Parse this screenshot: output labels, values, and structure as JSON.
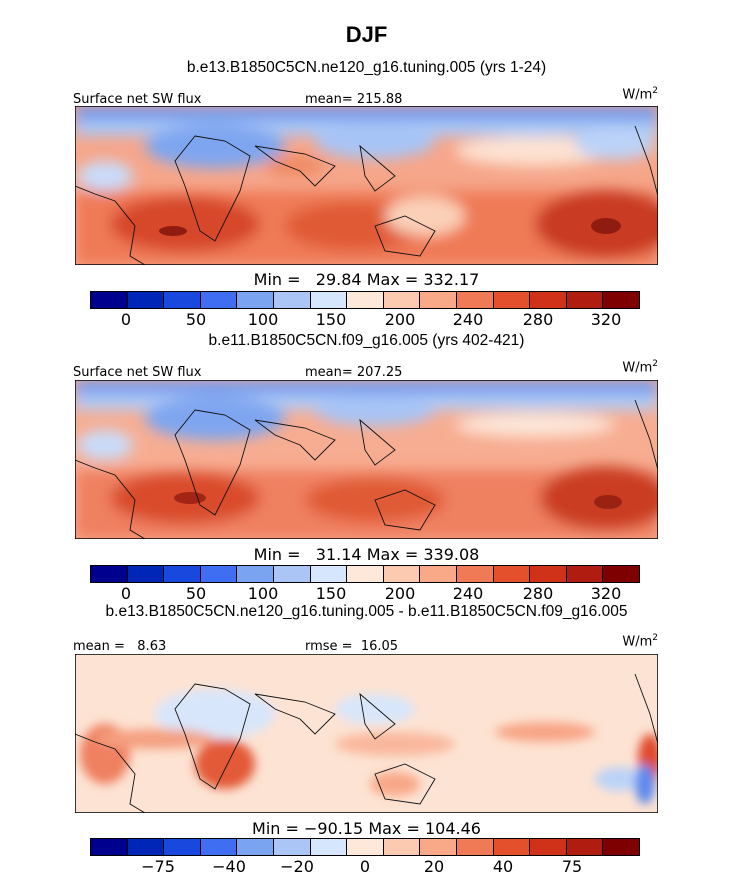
{
  "figure": {
    "title": "DJF",
    "colors": {
      "deep_red": "#8b0000",
      "red": "#e04a2a",
      "orange": "#f07050",
      "light_orange": "#fbb69a",
      "cream": "#fde4d4",
      "pale_blue": "#d0e4fb",
      "mid_blue": "#7aa4f0",
      "blue": "#2a5ae8",
      "dark_blue": "#00008f"
    }
  },
  "panels": [
    {
      "run_label": "b.e13.B1850C5CN.ne120_g16.tuning.005 (yrs 1-24)",
      "left_label": "Surface net SW flux",
      "center_label": "mean= 215.88",
      "units_base": "W/m",
      "units_exp": "2",
      "min_label": "Min =   29.84",
      "max_label": "Max = 332.17",
      "colorbar_ticks": [
        "0",
        "50",
        "100",
        "150",
        "200",
        "240",
        "280",
        "320"
      ]
    },
    {
      "run_label": "b.e11.B1850C5CN.f09_g16.005 (yrs 402-421)",
      "left_label": "Surface net SW flux",
      "center_label": "mean= 207.25",
      "units_base": "W/m",
      "units_exp": "2",
      "min_label": "Min =   31.14",
      "max_label": "Max = 339.08",
      "colorbar_ticks": [
        "0",
        "50",
        "100",
        "150",
        "200",
        "240",
        "280",
        "320"
      ]
    },
    {
      "run_label": "b.e13.B1850C5CN.ne120_g16.tuning.005 - b.e11.B1850C5CN.f09_g16.005",
      "left_label": "mean =   8.63",
      "center_label": "rmse =  16.05",
      "units_base": "W/m",
      "units_exp": "2",
      "min_label": "Min = −90.15",
      "max_label": "Max = 104.46",
      "colorbar_ticks": [
        "−75",
        "−40",
        "−20",
        "0",
        "20",
        "40",
        "75"
      ]
    }
  ],
  "chart_data": [
    {
      "type": "heatmap",
      "title": "Surface net SW flux",
      "units": "W/m2",
      "mean": 215.88,
      "min": 29.84,
      "max": 332.17,
      "contour_levels": [
        0,
        25,
        50,
        75,
        100,
        125,
        150,
        175,
        200,
        220,
        240,
        260,
        280,
        300,
        320
      ],
      "colorbar_ticks": [
        0,
        50,
        100,
        150,
        200,
        240,
        280,
        320
      ],
      "grid": false,
      "legend": "bottom"
    },
    {
      "type": "heatmap",
      "title": "Surface net SW flux",
      "units": "W/m2",
      "mean": 207.25,
      "min": 31.14,
      "max": 339.08,
      "contour_levels": [
        0,
        25,
        50,
        75,
        100,
        125,
        150,
        175,
        200,
        220,
        240,
        260,
        280,
        300,
        320
      ],
      "colorbar_ticks": [
        0,
        50,
        100,
        150,
        200,
        240,
        280,
        320
      ],
      "grid": false,
      "legend": "bottom"
    },
    {
      "type": "heatmap",
      "units": "W/m2",
      "mean": 8.63,
      "rmse": 16.05,
      "min": -90.15,
      "max": 104.46,
      "contour_levels": [
        -100,
        -75,
        -60,
        -40,
        -30,
        -20,
        -10,
        0,
        10,
        20,
        30,
        40,
        60,
        75,
        100
      ],
      "colorbar_ticks": [
        -75,
        -40,
        -20,
        0,
        20,
        40,
        75
      ],
      "grid": false,
      "legend": "bottom"
    }
  ]
}
